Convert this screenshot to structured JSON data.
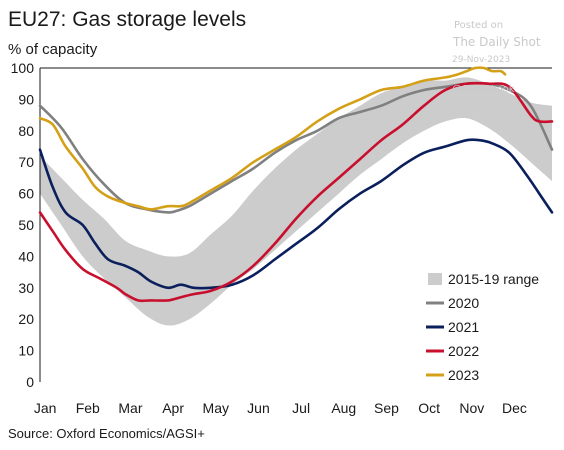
{
  "chart_data": {
    "type": "line",
    "title": "EU27: Gas storage levels",
    "ylabel": "% of capacity",
    "ylim": [
      0,
      100
    ],
    "yticks": [
      0,
      10,
      20,
      30,
      40,
      50,
      60,
      70,
      80,
      90,
      100
    ],
    "months": [
      "Jan",
      "Feb",
      "Mar",
      "Apr",
      "May",
      "Jun",
      "Jul",
      "Aug",
      "Sep",
      "Oct",
      "Nov",
      "Dec"
    ],
    "grid": false,
    "legend_position": "bottom-right",
    "range": {
      "name": "2015-19 range",
      "color": "#cccccc",
      "x": [
        0,
        0.5,
        1,
        1.5,
        2,
        2.5,
        3,
        3.5,
        4,
        4.5,
        5,
        5.5,
        6,
        6.5,
        7,
        7.5,
        8,
        8.5,
        9,
        9.5,
        10,
        10.5,
        11,
        11.5,
        12
      ],
      "low": [
        60,
        50,
        40,
        33,
        27,
        21,
        18,
        20,
        25,
        31,
        36,
        42,
        48,
        54,
        60,
        66,
        71,
        76,
        80,
        83,
        84,
        81,
        76,
        70,
        64
      ],
      "high": [
        72,
        65,
        58,
        52,
        45,
        42,
        40,
        41,
        47,
        53,
        61,
        68,
        74,
        79,
        84,
        88,
        92,
        94,
        96,
        96,
        97,
        95,
        92,
        89,
        88
      ]
    },
    "series": [
      {
        "name": "2020",
        "color": "#808080",
        "x": [
          0,
          0.5,
          1,
          1.5,
          2,
          2.5,
          3,
          3.2,
          3.5,
          4,
          4.5,
          5,
          5.5,
          6,
          6.5,
          7,
          7.5,
          8,
          8.5,
          9,
          9.5,
          10,
          10.5,
          11,
          11.5,
          12
        ],
        "values": [
          88,
          81,
          71,
          63,
          57,
          55,
          54,
          54.5,
          56,
          60,
          64,
          68,
          73,
          77,
          80,
          84,
          86,
          88,
          91,
          93,
          94,
          95,
          95,
          93,
          88,
          74
        ]
      },
      {
        "name": "2021",
        "color": "#0a1f5c",
        "x": [
          0,
          0.3,
          0.6,
          1,
          1.3,
          1.6,
          2,
          2.3,
          2.6,
          3,
          3.3,
          3.6,
          4,
          4.5,
          5,
          5.5,
          6,
          6.5,
          7,
          7.5,
          8,
          8.5,
          9,
          9.5,
          10,
          10.3,
          10.6,
          11,
          11.4,
          11.8,
          12
        ],
        "values": [
          74,
          62,
          54,
          50,
          44,
          39,
          37,
          35,
          32,
          30,
          31,
          30,
          30,
          31,
          34,
          39,
          44,
          49,
          55,
          60,
          64,
          69,
          73,
          75,
          77,
          77,
          76,
          73,
          66,
          58,
          54
        ]
      },
      {
        "name": "2022",
        "color": "#c8102e",
        "x": [
          0,
          0.3,
          0.6,
          1,
          1.4,
          1.8,
          2,
          2.3,
          2.6,
          3,
          3.3,
          3.6,
          4,
          4.5,
          5,
          5.5,
          6,
          6.5,
          7,
          7.5,
          8,
          8.5,
          9,
          9.5,
          10,
          10.5,
          11,
          11.5,
          11.7,
          12
        ],
        "values": [
          54,
          48,
          42,
          36,
          33,
          30,
          28,
          26,
          26,
          26,
          27,
          28,
          29,
          32,
          37,
          44,
          52,
          59,
          65,
          71,
          77,
          82,
          88,
          93,
          95,
          95,
          94,
          85,
          83,
          83
        ]
      },
      {
        "name": "2023",
        "color": "#d4a017",
        "x": [
          0,
          0.3,
          0.6,
          1,
          1.3,
          1.6,
          2,
          2.3,
          2.6,
          3,
          3.3,
          3.5,
          4,
          4.5,
          5,
          5.5,
          6,
          6.5,
          7,
          7.5,
          8,
          8.5,
          9,
          9.5,
          9.8,
          10,
          10.2,
          10.4,
          10.6,
          10.8,
          10.9
        ],
        "values": [
          84,
          82,
          75,
          68,
          62,
          59,
          57,
          56,
          55,
          56,
          56,
          57,
          61,
          65,
          70,
          74,
          78,
          83,
          87,
          90,
          93,
          94,
          96,
          97,
          98,
          99,
          100,
          100,
          99,
          99,
          98
        ]
      }
    ]
  },
  "watermark": {
    "posted_on": "Posted on",
    "site": "The Daily Shot",
    "date": "29-Nov-2023",
    "handle": "@SoberLook"
  },
  "source": "Source: Oxford Economics/AGSI+"
}
